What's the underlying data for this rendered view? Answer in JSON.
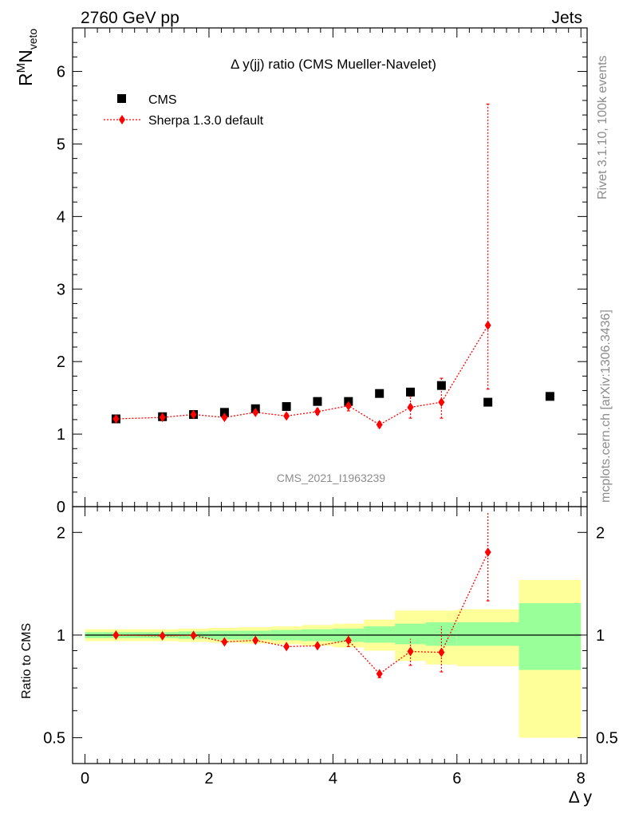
{
  "header": {
    "left": "2760 GeV pp",
    "right": "Jets",
    "side_rivet": "Rivet 3.1.10,  100k events",
    "side_mcplots": "mcplots.cern.ch [arXiv:1306.3436]",
    "analysis_id": "CMS_2021_I1963239"
  },
  "main": {
    "title": "Δ y(jj) ratio (CMS Mueller-Navelet)",
    "ylabel_main": "R",
    "ylabel_sup": "M",
    "ylabel_rest": "N",
    "ylabel_sub": "veto",
    "yticks": [
      "0",
      "1",
      "2",
      "3",
      "4",
      "5",
      "6"
    ]
  },
  "ratio": {
    "ylabel": "Ratio to CMS",
    "yticks": [
      "0.5",
      "1",
      "2"
    ]
  },
  "xaxis": {
    "label": "Δ y",
    "ticks": [
      "0",
      "2",
      "4",
      "6",
      "8"
    ]
  },
  "legend": {
    "cms": "CMS",
    "sherpa": "Sherpa 1.3.0 default"
  },
  "colors": {
    "cms": "#000000",
    "sherpa": "#ff0000",
    "band_outer": "#ffff99",
    "band_inner": "#99ff99"
  },
  "chart_data": [
    {
      "type": "scatter",
      "title": "Δ y(jj) ratio (CMS Mueller-Navelet)",
      "xlabel": "Δ y",
      "ylabel": "R^M N_veto",
      "xlim": [
        -0.2,
        8.1
      ],
      "ylim": [
        0,
        6.6
      ],
      "legend_position": "top-left",
      "series": [
        {
          "name": "CMS",
          "x": [
            0.5,
            1.25,
            1.75,
            2.25,
            2.75,
            3.25,
            3.75,
            4.25,
            4.75,
            5.25,
            5.75,
            6.5,
            7.5
          ],
          "y": [
            1.21,
            1.24,
            1.27,
            1.3,
            1.35,
            1.38,
            1.45,
            1.45,
            1.56,
            1.58,
            1.67,
            1.44,
            1.52
          ]
        },
        {
          "name": "Sherpa 1.3.0 default",
          "x": [
            0.5,
            1.25,
            1.75,
            2.25,
            2.75,
            3.25,
            3.75,
            4.25,
            4.75,
            5.25,
            5.75,
            6.5
          ],
          "y": [
            1.21,
            1.23,
            1.27,
            1.23,
            1.3,
            1.25,
            1.31,
            1.39,
            1.13,
            1.37,
            1.44,
            2.5
          ],
          "err_low": [
            0.02,
            0.02,
            0.02,
            0.03,
            0.03,
            0.03,
            0.04,
            0.07,
            0.04,
            0.15,
            0.22,
            0.88
          ],
          "err_high": [
            0.02,
            0.02,
            0.02,
            0.03,
            0.03,
            0.03,
            0.04,
            0.07,
            0.04,
            0.15,
            0.33,
            3.05
          ]
        }
      ]
    },
    {
      "type": "scatter",
      "xlabel": "Δ y",
      "ylabel": "Ratio to CMS",
      "xlim": [
        -0.2,
        8.1
      ],
      "ylim": [
        0.42,
        2.38
      ],
      "y_scale": "log",
      "reference_line": 1,
      "bands": {
        "edges": [
          0,
          1,
          1.5,
          2,
          2.5,
          3,
          3.5,
          4,
          4.5,
          5,
          5.5,
          6,
          7,
          8
        ],
        "outer_low": [
          0.96,
          0.96,
          0.955,
          0.95,
          0.945,
          0.94,
          0.93,
          0.92,
          0.9,
          0.84,
          0.82,
          0.81,
          0.5
        ],
        "outer_high": [
          1.04,
          1.04,
          1.045,
          1.05,
          1.055,
          1.06,
          1.07,
          1.08,
          1.11,
          1.18,
          1.18,
          1.19,
          1.45
        ],
        "inner_low": [
          0.98,
          0.98,
          0.975,
          0.97,
          0.97,
          0.965,
          0.96,
          0.955,
          0.95,
          0.94,
          0.93,
          0.93,
          0.79
        ],
        "inner_high": [
          1.02,
          1.02,
          1.025,
          1.03,
          1.03,
          1.035,
          1.04,
          1.045,
          1.06,
          1.08,
          1.09,
          1.09,
          1.24
        ]
      },
      "series": [
        {
          "name": "Sherpa 1.3.0 default",
          "x": [
            0.5,
            1.25,
            1.75,
            2.25,
            2.75,
            3.25,
            3.75,
            4.25,
            4.75,
            5.25,
            5.75,
            6.5
          ],
          "y": [
            1.0,
            0.995,
            0.998,
            0.955,
            0.965,
            0.925,
            0.93,
            0.965,
            0.77,
            0.895,
            0.89,
            1.75
          ],
          "err_low": [
            0.01,
            0.01,
            0.01,
            0.01,
            0.01,
            0.01,
            0.01,
            0.04,
            0.02,
            0.08,
            0.11,
            0.49
          ],
          "err_high": [
            0.01,
            0.01,
            0.01,
            0.01,
            0.01,
            0.01,
            0.01,
            0.04,
            0.02,
            0.08,
            0.17,
            0.55
          ]
        }
      ]
    }
  ]
}
